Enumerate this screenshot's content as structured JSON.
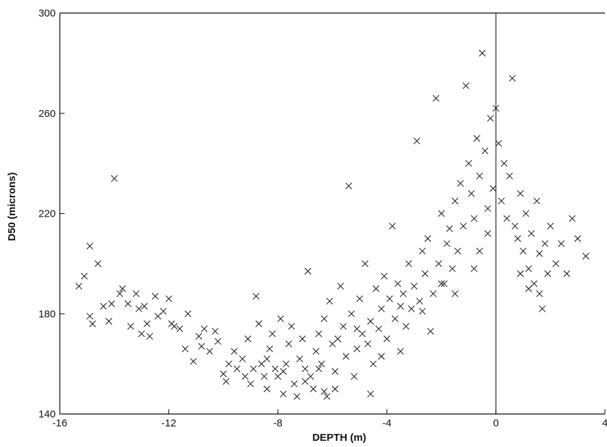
{
  "chart_data": {
    "type": "scatter",
    "title": "",
    "xlabel": "DEPTH (m)",
    "ylabel": "D50 (microns)",
    "xlim": [
      -16,
      4
    ],
    "ylim": [
      140,
      300
    ],
    "x_ticks": [
      -16,
      -12,
      -8,
      -4,
      0,
      4
    ],
    "x_tick_labels": [
      "-16",
      "-12",
      "-8",
      "-4",
      "0",
      "4"
    ],
    "y_ticks": [
      140,
      180,
      220,
      260,
      300
    ],
    "y_tick_labels": [
      "140",
      "180",
      "220",
      "260",
      "300"
    ],
    "grid": false,
    "legend": "none",
    "marker": "x",
    "reference_line_x": 0,
    "colors": {
      "marker": "#222222",
      "axis": "#000000",
      "background": "#ffffff"
    },
    "series": [
      {
        "points": [
          [
            -15.3,
            191
          ],
          [
            -15.1,
            195
          ],
          [
            -14.9,
            207
          ],
          [
            -14.8,
            176
          ],
          [
            -14.9,
            179
          ],
          [
            -14.6,
            200
          ],
          [
            -14.4,
            183
          ],
          [
            -14.2,
            177
          ],
          [
            -14.1,
            184
          ],
          [
            -14.0,
            234
          ],
          [
            -13.8,
            188
          ],
          [
            -13.7,
            190
          ],
          [
            -13.5,
            184
          ],
          [
            -13.4,
            175
          ],
          [
            -13.2,
            188
          ],
          [
            -13.1,
            182
          ],
          [
            -13.0,
            172
          ],
          [
            -12.9,
            183
          ],
          [
            -12.8,
            176
          ],
          [
            -12.7,
            171
          ],
          [
            -12.5,
            187
          ],
          [
            -12.4,
            179
          ],
          [
            -12.2,
            181
          ],
          [
            -12.0,
            186
          ],
          [
            -11.9,
            176
          ],
          [
            -11.8,
            175
          ],
          [
            -11.6,
            174
          ],
          [
            -11.4,
            166
          ],
          [
            -11.3,
            180
          ],
          [
            -11.1,
            161
          ],
          [
            -10.9,
            171
          ],
          [
            -10.8,
            167
          ],
          [
            -10.7,
            174
          ],
          [
            -10.5,
            165
          ],
          [
            -10.3,
            173
          ],
          [
            -10.2,
            169
          ],
          [
            -10.0,
            156
          ],
          [
            -9.9,
            153
          ],
          [
            -9.8,
            160
          ],
          [
            -9.6,
            165
          ],
          [
            -9.5,
            158
          ],
          [
            -9.3,
            162
          ],
          [
            -9.2,
            155
          ],
          [
            -9.1,
            170
          ],
          [
            -9.0,
            152
          ],
          [
            -8.9,
            158
          ],
          [
            -8.8,
            187
          ],
          [
            -8.7,
            176
          ],
          [
            -8.6,
            160
          ],
          [
            -8.5,
            155
          ],
          [
            -8.4,
            150
          ],
          [
            -8.3,
            166
          ],
          [
            -8.2,
            172
          ],
          [
            -8.1,
            158
          ],
          [
            -8.0,
            155
          ],
          [
            -7.9,
            178
          ],
          [
            -7.8,
            148
          ],
          [
            -7.7,
            160
          ],
          [
            -7.6,
            168
          ],
          [
            -7.5,
            175
          ],
          [
            -7.4,
            152
          ],
          [
            -7.3,
            147
          ],
          [
            -7.2,
            162
          ],
          [
            -7.1,
            170
          ],
          [
            -7.0,
            158
          ],
          [
            -6.9,
            197
          ],
          [
            -6.8,
            155
          ],
          [
            -6.7,
            150
          ],
          [
            -6.6,
            165
          ],
          [
            -6.5,
            172
          ],
          [
            -6.4,
            160
          ],
          [
            -6.3,
            178
          ],
          [
            -6.2,
            147
          ],
          [
            -6.1,
            185
          ],
          [
            -6.0,
            168
          ],
          [
            -5.9,
            157
          ],
          [
            -5.8,
            170
          ],
          [
            -5.7,
            191
          ],
          [
            -5.6,
            175
          ],
          [
            -5.5,
            163
          ],
          [
            -5.4,
            231
          ],
          [
            -5.3,
            180
          ],
          [
            -5.2,
            155
          ],
          [
            -5.1,
            166
          ],
          [
            -5.0,
            186
          ],
          [
            -4.9,
            172
          ],
          [
            -4.8,
            200
          ],
          [
            -4.7,
            168
          ],
          [
            -4.6,
            177
          ],
          [
            -4.5,
            160
          ],
          [
            -4.4,
            190
          ],
          [
            -4.3,
            174
          ],
          [
            -4.2,
            182
          ],
          [
            -4.1,
            195
          ],
          [
            -4.0,
            170
          ],
          [
            -3.9,
            186
          ],
          [
            -3.8,
            215
          ],
          [
            -3.7,
            178
          ],
          [
            -3.6,
            192
          ],
          [
            -3.5,
            183
          ],
          [
            -3.4,
            188
          ],
          [
            -3.3,
            175
          ],
          [
            -3.2,
            200
          ],
          [
            -3.1,
            182
          ],
          [
            -3.0,
            191
          ],
          [
            -2.9,
            249
          ],
          [
            -2.8,
            185
          ],
          [
            -2.7,
            205
          ],
          [
            -2.6,
            196
          ],
          [
            -2.5,
            210
          ],
          [
            -2.4,
            173
          ],
          [
            -2.3,
            188
          ],
          [
            -2.2,
            266
          ],
          [
            -2.1,
            200
          ],
          [
            -2.0,
            220
          ],
          [
            -1.9,
            192
          ],
          [
            -1.8,
            208
          ],
          [
            -1.7,
            214
          ],
          [
            -1.6,
            198
          ],
          [
            -1.5,
            225
          ],
          [
            -1.4,
            205
          ],
          [
            -1.3,
            232
          ],
          [
            -1.2,
            215
          ],
          [
            -1.1,
            271
          ],
          [
            -1.0,
            240
          ],
          [
            -0.9,
            228
          ],
          [
            -0.8,
            218
          ],
          [
            -0.7,
            250
          ],
          [
            -0.6,
            235
          ],
          [
            -0.5,
            284
          ],
          [
            -0.4,
            245
          ],
          [
            -0.3,
            222
          ],
          [
            -0.2,
            258
          ],
          [
            -0.1,
            230
          ],
          [
            0.0,
            262
          ],
          [
            0.1,
            248
          ],
          [
            0.2,
            225
          ],
          [
            0.3,
            240
          ],
          [
            0.4,
            218
          ],
          [
            0.5,
            235
          ],
          [
            0.6,
            274
          ],
          [
            0.7,
            215
          ],
          [
            0.8,
            210
          ],
          [
            0.9,
            228
          ],
          [
            1.0,
            205
          ],
          [
            1.1,
            220
          ],
          [
            1.2,
            198
          ],
          [
            1.3,
            212
          ],
          [
            1.4,
            192
          ],
          [
            1.5,
            225
          ],
          [
            1.6,
            204
          ],
          [
            1.7,
            182
          ],
          [
            1.8,
            208
          ],
          [
            1.9,
            196
          ],
          [
            2.0,
            215
          ],
          [
            2.2,
            200
          ],
          [
            2.4,
            208
          ],
          [
            2.6,
            196
          ],
          [
            2.8,
            218
          ],
          [
            3.0,
            210
          ],
          [
            3.3,
            203
          ],
          [
            -4.6,
            148
          ],
          [
            -5.9,
            150
          ],
          [
            -8.4,
            162
          ],
          [
            -6.5,
            158
          ],
          [
            -2.7,
            181
          ],
          [
            -1.5,
            188
          ],
          [
            -0.8,
            198
          ],
          [
            -0.6,
            205
          ],
          [
            1.2,
            190
          ],
          [
            0.9,
            196
          ],
          [
            1.6,
            188
          ],
          [
            -3.5,
            165
          ],
          [
            -4.2,
            163
          ],
          [
            -7.0,
            153
          ],
          [
            -6.3,
            149
          ],
          [
            -7.8,
            157
          ],
          [
            -5.1,
            174
          ],
          [
            -2.0,
            192
          ],
          [
            -0.3,
            212
          ]
        ]
      }
    ]
  }
}
